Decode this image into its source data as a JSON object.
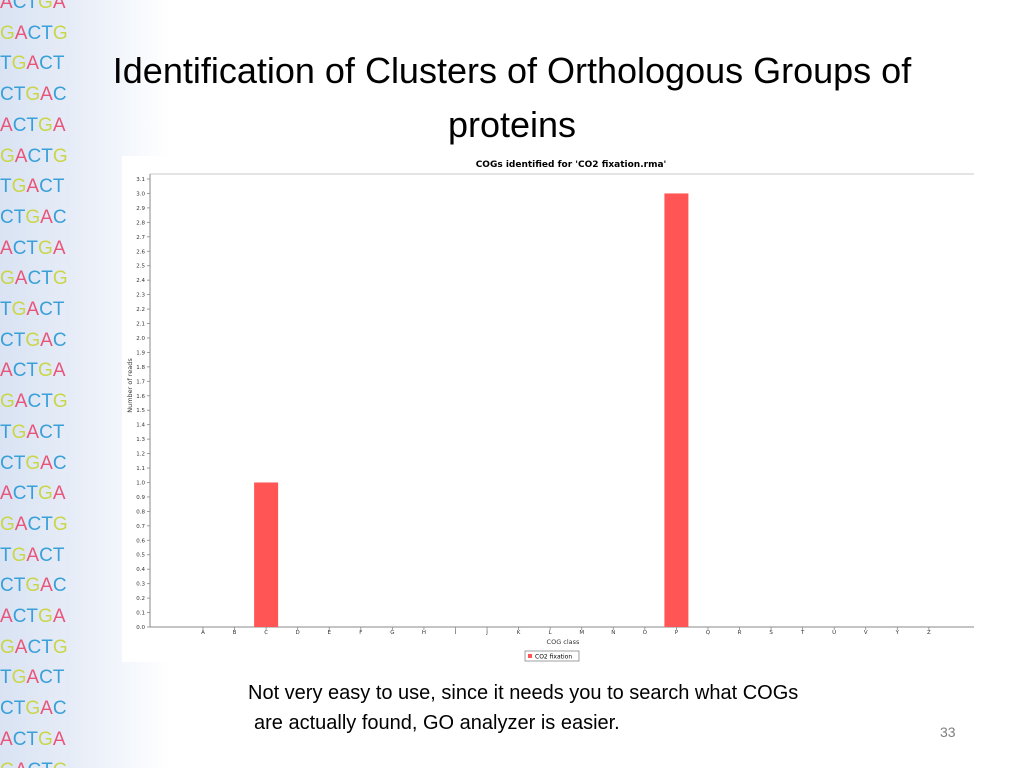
{
  "slide": {
    "title": "Identification of Clusters of Orthologous Groups of proteins",
    "caption_line1": "Not very easy to use, since it needs you to search what COGs",
    "caption_line2": "are actually found, GO analyzer is easier.",
    "slide_number": "33"
  },
  "sidebar": {
    "rows": [
      "ACTGA",
      "GACTG",
      "TGACT",
      "CTGAC",
      "ACTGA",
      "GACTG",
      "TGACT",
      "CTGAC",
      "ACTGA",
      "GACTG",
      "TGACT",
      "CTGAC",
      "ACTGA",
      "GACTG",
      "TGACT",
      "CTGAC",
      "ACTGA",
      "GACTG",
      "TGACT",
      "CTGAC",
      "ACTGA",
      "GACTG",
      "TGACT",
      "CTGAC",
      "ACTGA",
      "GACTG"
    ],
    "colors": {
      "A": "#e8557a",
      "C": "#3aa0d8",
      "T": "#3aa0d8",
      "G": "#c9d64a"
    }
  },
  "chart_data": {
    "type": "bar",
    "title": "COGs identified for 'CO2 fixation.rma'",
    "xlabel": "COG class",
    "ylabel": "Number of reads",
    "categories": [
      "A",
      "B",
      "C",
      "D",
      "E",
      "F",
      "G",
      "H",
      "I",
      "J",
      "K",
      "L",
      "M",
      "N",
      "O",
      "P",
      "Q",
      "R",
      "S",
      "T",
      "U",
      "V",
      "Y",
      "Z"
    ],
    "series": [
      {
        "name": "CO2 fixation",
        "color": "#ff5555",
        "values": [
          0,
          0,
          1,
          0,
          0,
          0,
          0,
          0,
          0,
          0,
          0,
          0,
          0,
          0,
          0,
          3,
          0,
          0,
          0,
          0,
          0,
          0,
          0,
          0
        ]
      }
    ],
    "ylim": [
      0,
      3.1
    ],
    "yticks": [
      0.0,
      0.1,
      0.2,
      0.3,
      0.4,
      0.5,
      0.6,
      0.7,
      0.8,
      0.9,
      1.0,
      1.1,
      1.2,
      1.3,
      1.4,
      1.5,
      1.6,
      1.7,
      1.8,
      1.9,
      2.0,
      2.1,
      2.2,
      2.3,
      2.4,
      2.5,
      2.6,
      2.7,
      2.8,
      2.9,
      3.0,
      3.1
    ],
    "grid": false,
    "legend": "bottom"
  }
}
